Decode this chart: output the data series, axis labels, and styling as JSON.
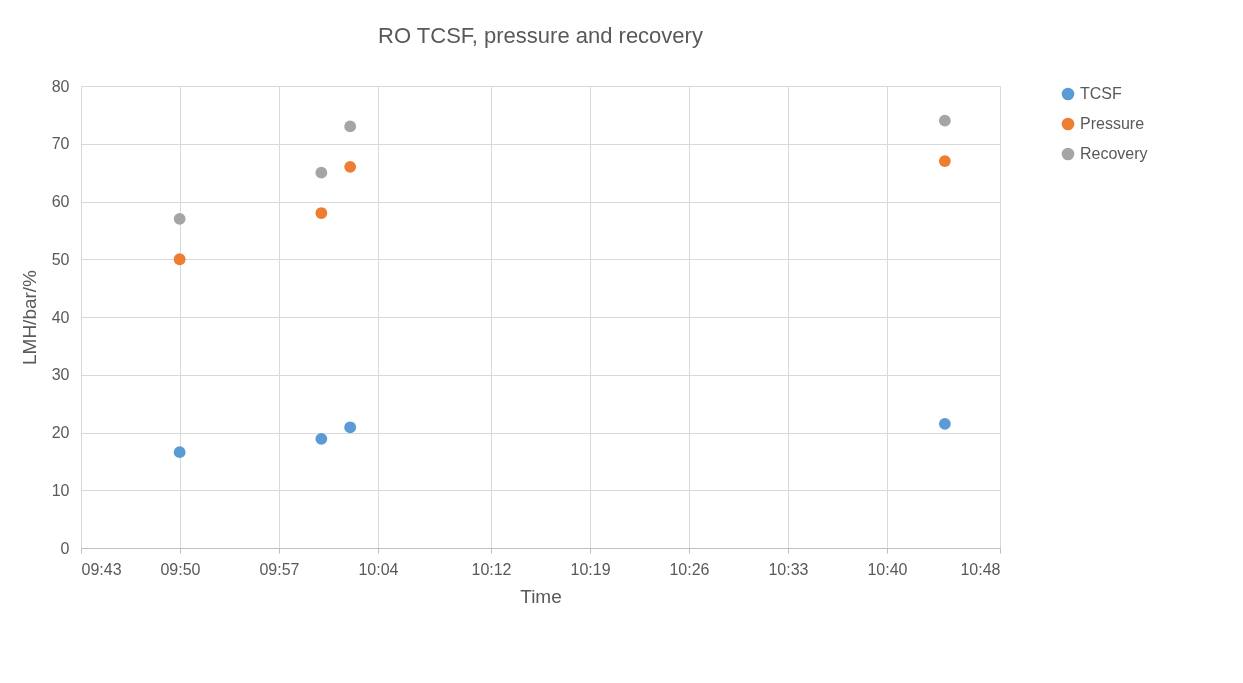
{
  "chart_data": {
    "type": "scatter",
    "title": "RO  TCSF, pressure and recovery",
    "xlabel": "Time",
    "ylabel": "LMH/bar/%",
    "x": [
      9.833,
      10.0,
      10.034,
      10.735
    ],
    "series": [
      {
        "name": "TCSF",
        "color": "#5b9bd5",
        "values": [
          16.6,
          18.9,
          20.9,
          21.5
        ]
      },
      {
        "name": "Pressure",
        "color": "#ed7d31",
        "values": [
          50,
          58,
          66,
          67
        ]
      },
      {
        "name": "Recovery",
        "color": "#a5a5a5",
        "values": [
          57,
          65,
          73,
          74
        ]
      }
    ],
    "xlim": [
      9.7167,
      10.8
    ],
    "xticks": [
      {
        "value": 9.7167,
        "label": "09:43"
      },
      {
        "value": 9.8333,
        "label": "09:50"
      },
      {
        "value": 9.95,
        "label": "09:57"
      },
      {
        "value": 10.0667,
        "label": "10:04"
      },
      {
        "value": 10.2,
        "label": "10:12"
      },
      {
        "value": 10.3167,
        "label": "10:19"
      },
      {
        "value": 10.4333,
        "label": "10:26"
      },
      {
        "value": 10.55,
        "label": "10:33"
      },
      {
        "value": 10.6667,
        "label": "10:40"
      },
      {
        "value": 10.8,
        "label": "10:48"
      }
    ],
    "ylim": [
      0,
      80
    ],
    "yticks": [
      0,
      10,
      20,
      30,
      40,
      50,
      60,
      70,
      80
    ],
    "grid": true,
    "legend": "right",
    "marker": "circle"
  }
}
